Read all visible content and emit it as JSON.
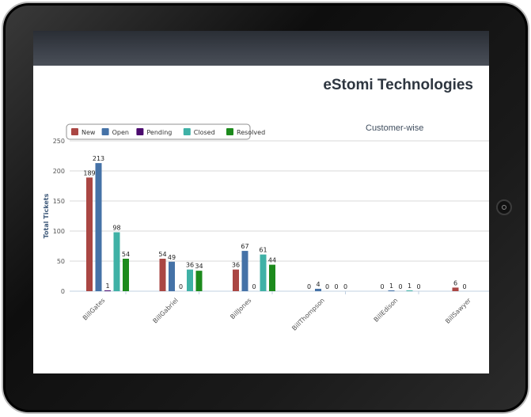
{
  "company_name": "eStomi Technologies",
  "chart_data": {
    "type": "bar",
    "title": "Customer-wise",
    "ylabel": "Total Tickets",
    "xlabel": "",
    "ylim": [
      0,
      250
    ],
    "yticks": [
      0,
      50,
      100,
      150,
      200,
      250
    ],
    "categories": [
      "BillGates",
      "BillGabriel",
      "BillJones",
      "BillThompson",
      "BillEdison",
      "BillSawyer"
    ],
    "series": [
      {
        "name": "New",
        "color": "#aa4643",
        "values": [
          189,
          54,
          36,
          0,
          0,
          6
        ]
      },
      {
        "name": "Open",
        "color": "#4572a7",
        "values": [
          213,
          49,
          67,
          4,
          1,
          0
        ]
      },
      {
        "name": "Pending",
        "color": "#4b0b6e",
        "values": [
          1,
          0,
          0,
          0,
          0,
          null
        ]
      },
      {
        "name": "Closed",
        "color": "#3fb1a6",
        "values": [
          98,
          36,
          61,
          0,
          1,
          null
        ]
      },
      {
        "name": "Resolved",
        "color": "#1c8a1c",
        "values": [
          54,
          34,
          44,
          0,
          0,
          null
        ]
      }
    ],
    "legend_position": "top-left",
    "grid": true
  }
}
